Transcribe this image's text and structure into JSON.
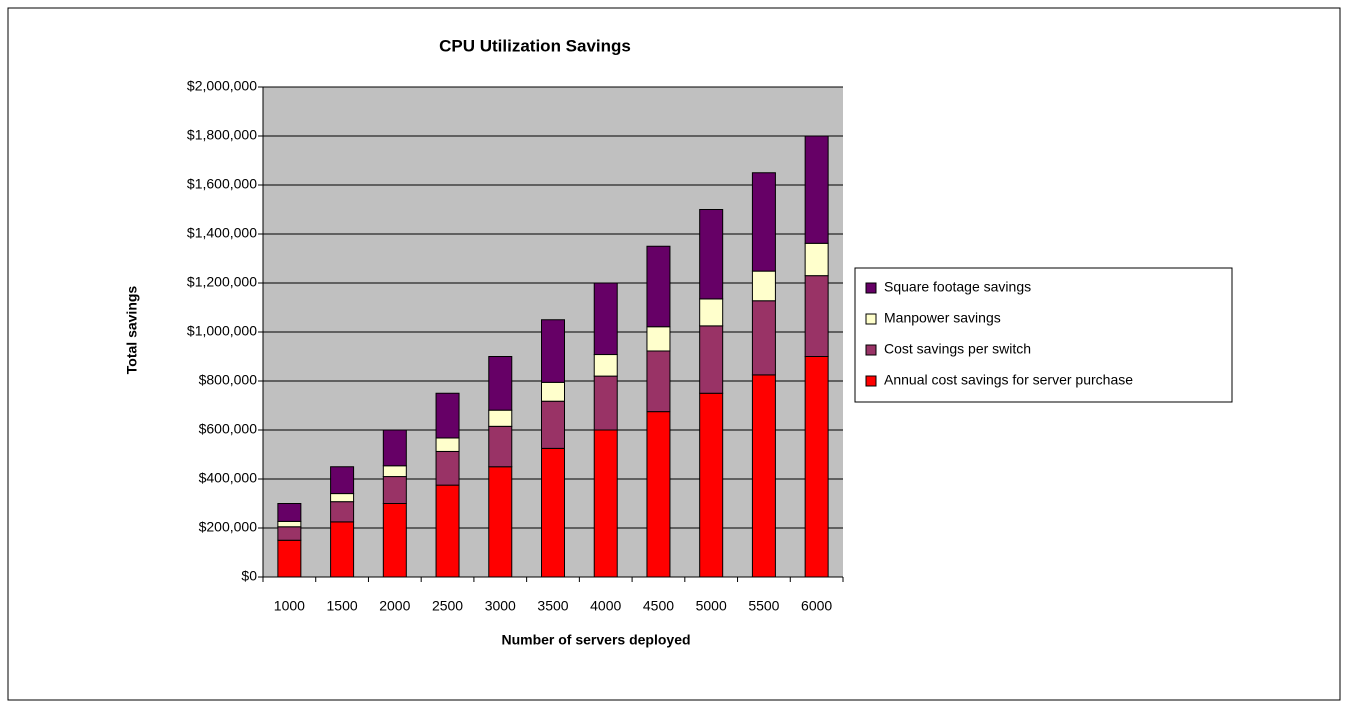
{
  "chart_data": {
    "type": "bar",
    "stacked": true,
    "title": "CPU Utilization Savings",
    "x_label": "Number of servers deployed",
    "y_label": "Total savings",
    "categories": [
      "1000",
      "1500",
      "2000",
      "2500",
      "3000",
      "3500",
      "4000",
      "4500",
      "5000",
      "5500",
      "6000"
    ],
    "series": [
      {
        "name": "Annual cost savings for server purchase",
        "color": "#ff0000",
        "values": [
          150000,
          225000,
          300000,
          375000,
          450000,
          525000,
          600000,
          675000,
          750000,
          825000,
          900000
        ]
      },
      {
        "name": "Cost savings per switch",
        "color": "#993366",
        "values": [
          55000,
          82500,
          110000,
          137500,
          165000,
          192500,
          220000,
          247500,
          275000,
          302500,
          330000
        ]
      },
      {
        "name": "Manpower savings",
        "color": "#ffffcc",
        "values": [
          22000,
          33000,
          44000,
          55000,
          66000,
          77000,
          88000,
          99000,
          110000,
          121000,
          132000
        ]
      },
      {
        "name": "Square footage savings",
        "color": "#660066",
        "values": [
          73000,
          109500,
          146000,
          182500,
          219000,
          255500,
          292000,
          328500,
          365000,
          401500,
          438000
        ]
      }
    ],
    "ylim": [
      0,
      2000000
    ],
    "yticks": [
      {
        "value": 0,
        "label": "$0"
      },
      {
        "value": 200000,
        "label": "$200,000"
      },
      {
        "value": 400000,
        "label": "$400,000"
      },
      {
        "value": 600000,
        "label": "$600,000"
      },
      {
        "value": 800000,
        "label": "$800,000"
      },
      {
        "value": 1000000,
        "label": "$1,000,000"
      },
      {
        "value": 1200000,
        "label": "$1,200,000"
      },
      {
        "value": 1400000,
        "label": "$1,400,000"
      },
      {
        "value": 1600000,
        "label": "$1,600,000"
      },
      {
        "value": 1800000,
        "label": "$1,800,000"
      },
      {
        "value": 2000000,
        "label": "$2,000,000"
      }
    ],
    "grid": true,
    "legend": "right"
  }
}
